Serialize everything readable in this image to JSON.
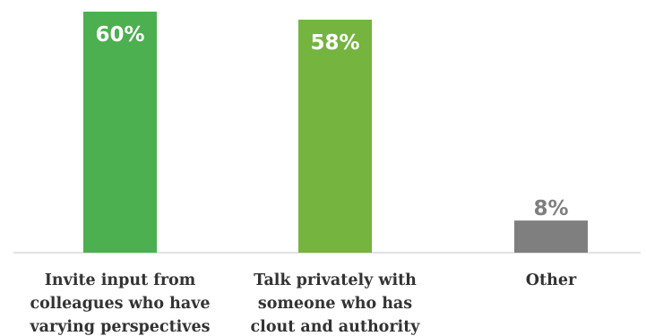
{
  "chart_data": {
    "type": "bar",
    "categories": [
      [
        "Invite input from",
        "colleagues who have",
        "varying perspectives"
      ],
      [
        "Talk privately with",
        "someone who has",
        "clout and authority"
      ],
      [
        "Other"
      ]
    ],
    "values": [
      60,
      58,
      8
    ],
    "value_labels": [
      "60%",
      "58%",
      "8%"
    ],
    "colors": [
      "#4caf50",
      "#74b43f",
      "#7f7f7f"
    ],
    "value_label_colors": [
      "#ffffff",
      "#ffffff",
      "#7f7f7f"
    ],
    "value_label_position": [
      "inside",
      "inside",
      "above"
    ],
    "ylim": [
      0,
      60
    ],
    "grid": false,
    "legend": "none",
    "title": "",
    "xlabel": "",
    "ylabel": ""
  }
}
